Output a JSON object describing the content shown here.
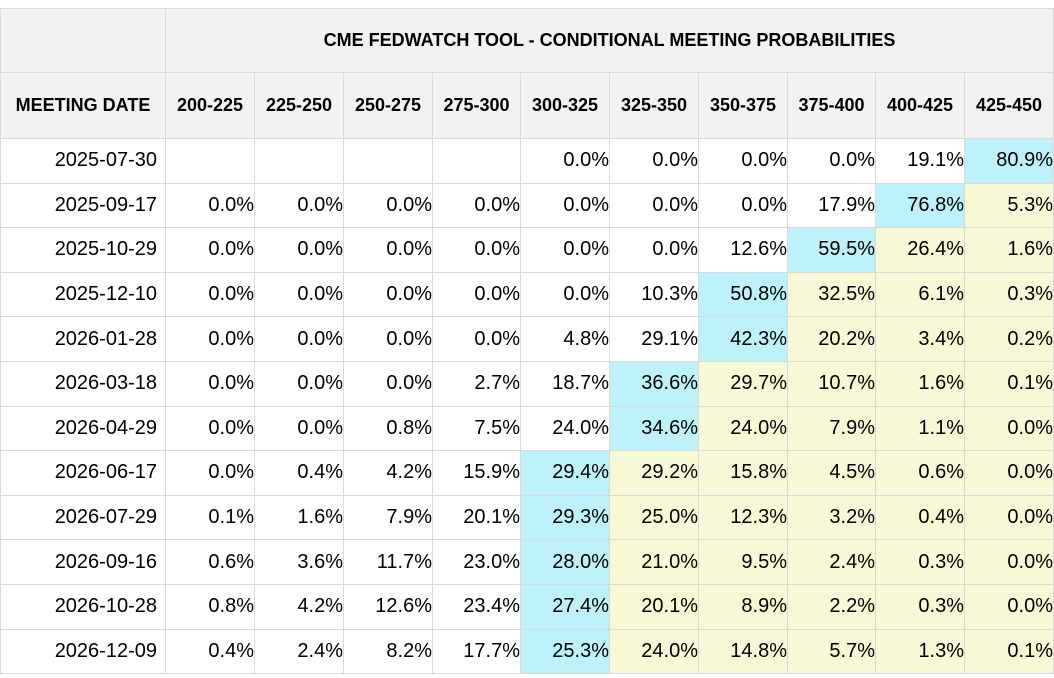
{
  "table": {
    "title": "CME FEDWATCH TOOL - CONDITIONAL MEETING PROBABILITIES",
    "corner": "",
    "date_header": "MEETING DATE",
    "ranges": [
      "200-225",
      "225-250",
      "250-275",
      "275-300",
      "300-325",
      "325-350",
      "350-375",
      "375-400",
      "400-425",
      "425-450"
    ],
    "highlight_colors": {
      "mode": "#bdf2fa",
      "above_mode": "#f7f9d6"
    },
    "rows": [
      {
        "date": "2025-07-30",
        "mode_index": 9,
        "values": [
          "",
          "",
          "",
          "",
          "0.0%",
          "0.0%",
          "0.0%",
          "0.0%",
          "19.1%",
          "80.9%"
        ]
      },
      {
        "date": "2025-09-17",
        "mode_index": 8,
        "values": [
          "0.0%",
          "0.0%",
          "0.0%",
          "0.0%",
          "0.0%",
          "0.0%",
          "0.0%",
          "17.9%",
          "76.8%",
          "5.3%"
        ]
      },
      {
        "date": "2025-10-29",
        "mode_index": 7,
        "values": [
          "0.0%",
          "0.0%",
          "0.0%",
          "0.0%",
          "0.0%",
          "0.0%",
          "12.6%",
          "59.5%",
          "26.4%",
          "1.6%"
        ]
      },
      {
        "date": "2025-12-10",
        "mode_index": 6,
        "values": [
          "0.0%",
          "0.0%",
          "0.0%",
          "0.0%",
          "0.0%",
          "10.3%",
          "50.8%",
          "32.5%",
          "6.1%",
          "0.3%"
        ]
      },
      {
        "date": "2026-01-28",
        "mode_index": 6,
        "values": [
          "0.0%",
          "0.0%",
          "0.0%",
          "0.0%",
          "4.8%",
          "29.1%",
          "42.3%",
          "20.2%",
          "3.4%",
          "0.2%"
        ]
      },
      {
        "date": "2026-03-18",
        "mode_index": 5,
        "values": [
          "0.0%",
          "0.0%",
          "0.0%",
          "2.7%",
          "18.7%",
          "36.6%",
          "29.7%",
          "10.7%",
          "1.6%",
          "0.1%"
        ]
      },
      {
        "date": "2026-04-29",
        "mode_index": 5,
        "values": [
          "0.0%",
          "0.0%",
          "0.8%",
          "7.5%",
          "24.0%",
          "34.6%",
          "24.0%",
          "7.9%",
          "1.1%",
          "0.0%"
        ]
      },
      {
        "date": "2026-06-17",
        "mode_index": 4,
        "values": [
          "0.0%",
          "0.4%",
          "4.2%",
          "15.9%",
          "29.4%",
          "29.2%",
          "15.8%",
          "4.5%",
          "0.6%",
          "0.0%"
        ]
      },
      {
        "date": "2026-07-29",
        "mode_index": 4,
        "values": [
          "0.1%",
          "1.6%",
          "7.9%",
          "20.1%",
          "29.3%",
          "25.0%",
          "12.3%",
          "3.2%",
          "0.4%",
          "0.0%"
        ]
      },
      {
        "date": "2026-09-16",
        "mode_index": 4,
        "values": [
          "0.6%",
          "3.6%",
          "11.7%",
          "23.0%",
          "28.0%",
          "21.0%",
          "9.5%",
          "2.4%",
          "0.3%",
          "0.0%"
        ]
      },
      {
        "date": "2026-10-28",
        "mode_index": 4,
        "values": [
          "0.8%",
          "4.2%",
          "12.6%",
          "23.4%",
          "27.4%",
          "20.1%",
          "8.9%",
          "2.2%",
          "0.3%",
          "0.0%"
        ]
      },
      {
        "date": "2026-12-09",
        "mode_index": 4,
        "values": [
          "0.4%",
          "2.4%",
          "8.2%",
          "17.7%",
          "25.3%",
          "24.0%",
          "14.8%",
          "5.7%",
          "1.3%",
          "0.1%"
        ]
      }
    ]
  }
}
